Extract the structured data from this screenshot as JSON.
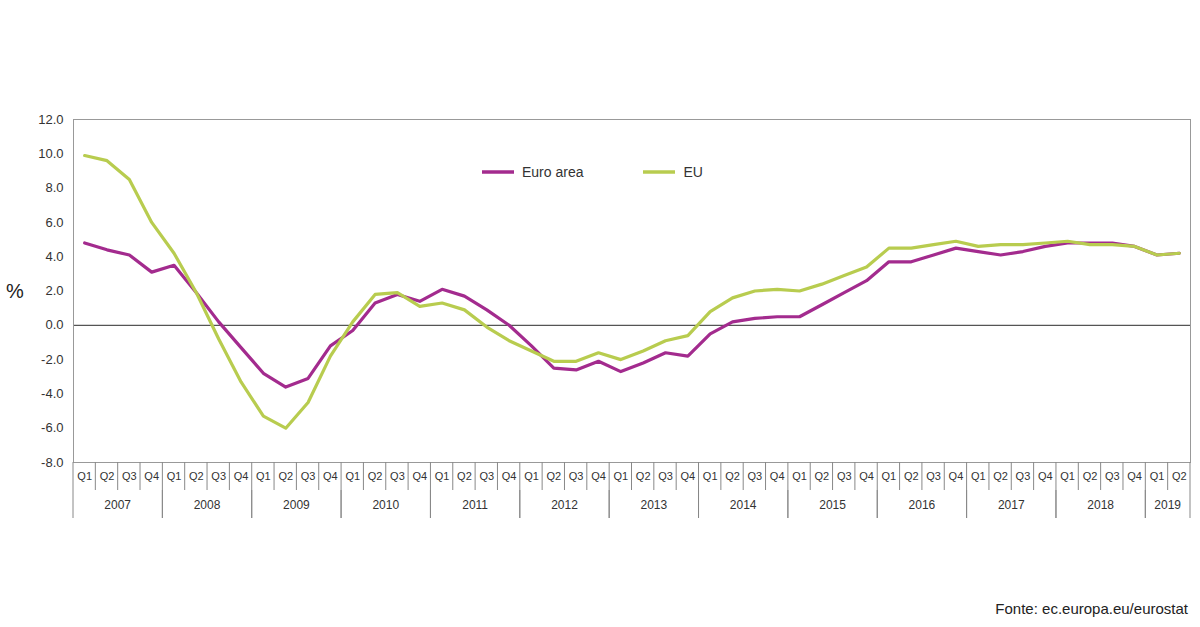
{
  "chart_data": {
    "type": "line",
    "y_label": "%",
    "source": "Fonte: ec.europa.eu/eurostat",
    "categories": [
      "Q1",
      "Q2",
      "Q3",
      "Q4",
      "Q1",
      "Q2",
      "Q3",
      "Q4",
      "Q1",
      "Q2",
      "Q3",
      "Q4",
      "Q1",
      "Q2",
      "Q3",
      "Q4",
      "Q1",
      "Q2",
      "Q3",
      "Q4",
      "Q1",
      "Q2",
      "Q3",
      "Q4",
      "Q1",
      "Q2",
      "Q3",
      "Q4",
      "Q1",
      "Q2",
      "Q3",
      "Q4",
      "Q1",
      "Q2",
      "Q3",
      "Q4",
      "Q1",
      "Q2",
      "Q3",
      "Q4",
      "Q1",
      "Q2",
      "Q3",
      "Q4",
      "Q1",
      "Q2",
      "Q3",
      "Q4",
      "Q1",
      "Q2"
    ],
    "category_groups": [
      "2007",
      "2007",
      "2007",
      "2007",
      "2008",
      "2008",
      "2008",
      "2008",
      "2009",
      "2009",
      "2009",
      "2009",
      "2010",
      "2010",
      "2010",
      "2010",
      "2011",
      "2011",
      "2011",
      "2011",
      "2012",
      "2012",
      "2012",
      "2012",
      "2013",
      "2013",
      "2013",
      "2013",
      "2014",
      "2014",
      "2014",
      "2014",
      "2015",
      "2015",
      "2015",
      "2015",
      "2016",
      "2016",
      "2016",
      "2016",
      "2017",
      "2017",
      "2017",
      "2017",
      "2018",
      "2018",
      "2018",
      "2018",
      "2019",
      "2019"
    ],
    "series": [
      {
        "name": "Euro area",
        "color": "#a32b8e",
        "values": [
          4.8,
          4.4,
          4.1,
          3.1,
          3.5,
          1.9,
          0.2,
          -1.3,
          -2.8,
          -3.6,
          -3.1,
          -1.2,
          -0.3,
          1.3,
          1.8,
          1.4,
          2.1,
          1.7,
          0.9,
          0.0,
          -1.2,
          -2.5,
          -2.6,
          -2.1,
          -2.7,
          -2.2,
          -1.6,
          -1.8,
          -0.5,
          0.2,
          0.4,
          0.5,
          0.5,
          1.2,
          1.9,
          2.6,
          3.7,
          3.7,
          4.1,
          4.5,
          4.3,
          4.1,
          4.3,
          4.6,
          4.8,
          4.8,
          4.8,
          4.6,
          4.1,
          4.2
        ]
      },
      {
        "name": "EU",
        "color": "#b8cc4f",
        "values": [
          9.9,
          9.6,
          8.5,
          6.0,
          4.2,
          1.9,
          -0.8,
          -3.3,
          -5.3,
          -6.0,
          -4.5,
          -1.8,
          0.2,
          1.8,
          1.9,
          1.1,
          1.3,
          0.9,
          -0.1,
          -0.9,
          -1.5,
          -2.1,
          -2.1,
          -1.6,
          -2.0,
          -1.5,
          -0.9,
          -0.6,
          0.8,
          1.6,
          2.0,
          2.1,
          2.0,
          2.4,
          2.9,
          3.4,
          4.5,
          4.5,
          4.7,
          4.9,
          4.6,
          4.7,
          4.7,
          4.8,
          4.9,
          4.7,
          4.7,
          4.6,
          4.1,
          4.2
        ]
      }
    ],
    "ylim": [
      -8,
      12
    ],
    "yticks": [
      {
        "value": -8,
        "label": "-8.0"
      },
      {
        "value": -6,
        "label": "-6.0"
      },
      {
        "value": -4,
        "label": "-4.0"
      },
      {
        "value": -2,
        "label": "-2.0"
      },
      {
        "value": 0,
        "label": "0.0"
      },
      {
        "value": 2,
        "label": "2.0"
      },
      {
        "value": 4,
        "label": "4.0"
      },
      {
        "value": 6,
        "label": "6.0"
      },
      {
        "value": 8,
        "label": "8.0"
      },
      {
        "value": 10,
        "label": "10.0"
      },
      {
        "value": 12,
        "label": "12.0"
      }
    ],
    "grid": false,
    "legend": "top"
  }
}
